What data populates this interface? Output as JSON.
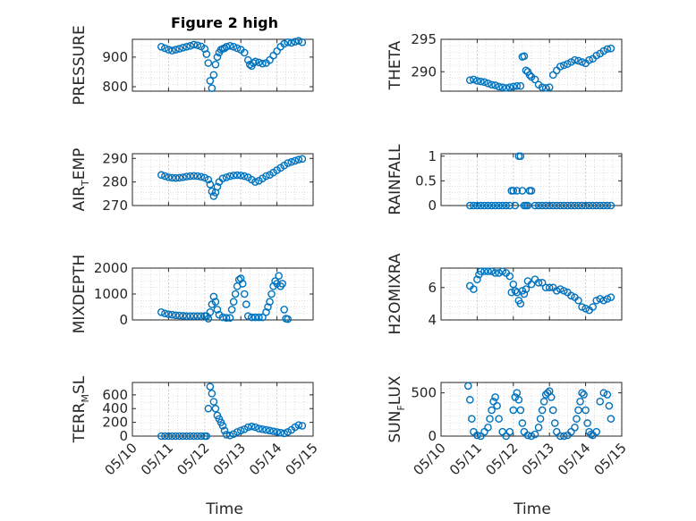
{
  "figure": {
    "title": "Figure 2 high",
    "xlabel": "Time"
  },
  "colors": {
    "marker": "#0072BD",
    "axis": "#262626",
    "grid": "#c8c8c8",
    "background": "#ffffff"
  },
  "chart_data": [
    {
      "type": "scatter",
      "name": "PRESSURE",
      "ylabel": {
        "main": "PRESSURE",
        "sub": "",
        "tail": ""
      },
      "title": "Figure 2 high",
      "xlim": [
        10,
        15
      ],
      "ylim": [
        785,
        960
      ],
      "yticks": [
        800,
        900
      ],
      "xticks": [
        "05/10",
        "05/11",
        "05/12",
        "05/13",
        "05/14",
        "05/15"
      ],
      "show_xticklabels": false,
      "grid": true,
      "series": [
        {
          "x": [
            10.8,
            10.9,
            11.0,
            11.1,
            11.2,
            11.3,
            11.4,
            11.5,
            11.6,
            11.7,
            11.8,
            11.9,
            12.0,
            12.05,
            12.1,
            12.15,
            12.2,
            12.25,
            12.3,
            12.35,
            12.4,
            12.45,
            12.5,
            12.55,
            12.6,
            12.7,
            12.8,
            12.9,
            13.0,
            13.1,
            13.2,
            13.25,
            13.3,
            13.35,
            13.4,
            13.5,
            13.6,
            13.7,
            13.8,
            13.9,
            14.0,
            14.1,
            14.2,
            14.3,
            14.4,
            14.5,
            14.6,
            14.7
          ],
          "y": [
            935,
            930,
            925,
            922,
            925,
            928,
            932,
            935,
            938,
            942,
            940,
            936,
            928,
            910,
            880,
            820,
            795,
            840,
            875,
            900,
            915,
            925,
            928,
            930,
            935,
            938,
            935,
            930,
            925,
            915,
            890,
            875,
            870,
            880,
            885,
            882,
            878,
            880,
            890,
            905,
            920,
            935,
            945,
            950,
            948,
            952,
            955,
            950
          ]
        }
      ]
    },
    {
      "type": "scatter",
      "name": "THETA",
      "ylabel": {
        "main": "THETA",
        "sub": "",
        "tail": ""
      },
      "xlim": [
        10,
        15
      ],
      "ylim": [
        287,
        295
      ],
      "yticks": [
        290,
        295
      ],
      "xticks": [
        "05/10",
        "05/11",
        "05/12",
        "05/13",
        "05/14",
        "05/15"
      ],
      "show_xticklabels": false,
      "grid": true,
      "series": [
        {
          "x": [
            10.8,
            10.9,
            11.0,
            11.1,
            11.2,
            11.3,
            11.4,
            11.5,
            11.6,
            11.7,
            11.8,
            11.9,
            12.0,
            12.1,
            12.2,
            12.25,
            12.3,
            12.35,
            12.4,
            12.45,
            12.5,
            12.6,
            12.7,
            12.8,
            12.9,
            13.0,
            13.1,
            13.2,
            13.3,
            13.4,
            13.5,
            13.6,
            13.7,
            13.8,
            13.9,
            14.0,
            14.1,
            14.2,
            14.3,
            14.4,
            14.5,
            14.6,
            14.7
          ],
          "y": [
            288.7,
            288.8,
            288.6,
            288.5,
            288.4,
            288.2,
            288.0,
            287.9,
            287.7,
            287.6,
            287.5,
            287.6,
            287.7,
            287.8,
            287.8,
            292.3,
            292.4,
            290.2,
            290.0,
            289.5,
            289.2,
            288.8,
            288.0,
            287.6,
            287.5,
            287.6,
            289.5,
            290.2,
            290.8,
            291.0,
            291.2,
            291.5,
            291.8,
            291.7,
            291.5,
            291.3,
            291.8,
            292.0,
            292.5,
            292.8,
            293.2,
            293.5,
            293.6
          ]
        }
      ]
    },
    {
      "type": "scatter",
      "name": "AIR_TEMP",
      "ylabel": {
        "main": "AIR",
        "sub": "T",
        "tail": "EMP"
      },
      "xlim": [
        10,
        15
      ],
      "ylim": [
        270,
        292
      ],
      "yticks": [
        270,
        280,
        290
      ],
      "xticks": [
        "05/10",
        "05/11",
        "05/12",
        "05/13",
        "05/14",
        "05/15"
      ],
      "show_xticklabels": false,
      "grid": true,
      "series": [
        {
          "x": [
            10.8,
            10.9,
            11.0,
            11.1,
            11.2,
            11.3,
            11.4,
            11.5,
            11.6,
            11.7,
            11.8,
            11.9,
            12.0,
            12.1,
            12.15,
            12.2,
            12.25,
            12.3,
            12.35,
            12.4,
            12.5,
            12.6,
            12.7,
            12.8,
            12.9,
            13.0,
            13.1,
            13.2,
            13.3,
            13.4,
            13.5,
            13.6,
            13.7,
            13.8,
            13.9,
            14.0,
            14.1,
            14.2,
            14.3,
            14.4,
            14.5,
            14.6,
            14.7
          ],
          "y": [
            283,
            282.5,
            282.0,
            281.8,
            281.7,
            281.8,
            282.0,
            282.3,
            282.5,
            282.6,
            282.5,
            282.2,
            281.8,
            281.0,
            279.0,
            276.0,
            274.0,
            275.5,
            278.0,
            280.0,
            281.5,
            282.0,
            282.5,
            282.8,
            282.9,
            282.8,
            282.5,
            282.0,
            281.0,
            280.0,
            280.5,
            281.5,
            282.5,
            283.0,
            284.0,
            285.0,
            286.0,
            287.0,
            288.0,
            288.5,
            289.0,
            289.5,
            289.8
          ]
        }
      ]
    },
    {
      "type": "scatter",
      "name": "RAINFALL",
      "ylabel": {
        "main": "RAINFALL",
        "sub": "",
        "tail": ""
      },
      "xlim": [
        10,
        15
      ],
      "ylim": [
        0,
        1.05
      ],
      "yticks": [
        0,
        0.5,
        1
      ],
      "xticks": [
        "05/10",
        "05/11",
        "05/12",
        "05/13",
        "05/14",
        "05/15"
      ],
      "show_xticklabels": false,
      "grid": true,
      "series": [
        {
          "x": [
            10.8,
            10.9,
            11.0,
            11.1,
            11.2,
            11.3,
            11.4,
            11.5,
            11.6,
            11.7,
            11.8,
            11.9,
            11.95,
            12.0,
            12.05,
            12.1,
            12.15,
            12.2,
            12.25,
            12.3,
            12.35,
            12.4,
            12.45,
            12.5,
            12.6,
            12.7,
            12.8,
            12.9,
            13.0,
            13.1,
            13.2,
            13.3,
            13.4,
            13.5,
            13.6,
            13.7,
            13.8,
            13.9,
            14.0,
            14.1,
            14.2,
            14.3,
            14.4,
            14.5,
            14.6,
            14.7
          ],
          "y": [
            0,
            0,
            0,
            0,
            0,
            0,
            0,
            0,
            0,
            0,
            0,
            0,
            0.3,
            0.3,
            0,
            0.3,
            1.0,
            1.0,
            0.3,
            0,
            0,
            0,
            0.3,
            0.3,
            0,
            0,
            0,
            0,
            0,
            0,
            0,
            0,
            0,
            0,
            0,
            0,
            0,
            0,
            0,
            0,
            0,
            0,
            0,
            0,
            0,
            0
          ]
        }
      ]
    },
    {
      "type": "scatter",
      "name": "MIXDEPTH",
      "ylabel": {
        "main": "MIXDEPTH",
        "sub": "",
        "tail": ""
      },
      "xlim": [
        10,
        15
      ],
      "ylim": [
        0,
        2000
      ],
      "yticks": [
        0,
        1000,
        2000
      ],
      "xticks": [
        "05/10",
        "05/11",
        "05/12",
        "05/13",
        "05/14",
        "05/15"
      ],
      "show_xticklabels": false,
      "grid": true,
      "series": [
        {
          "x": [
            10.8,
            10.9,
            11.0,
            11.1,
            11.2,
            11.3,
            11.4,
            11.5,
            11.6,
            11.7,
            11.8,
            11.9,
            12.0,
            12.05,
            12.1,
            12.15,
            12.2,
            12.25,
            12.3,
            12.35,
            12.4,
            12.5,
            12.6,
            12.7,
            12.75,
            12.8,
            12.85,
            12.9,
            12.95,
            13.0,
            13.05,
            13.1,
            13.15,
            13.2,
            13.3,
            13.4,
            13.5,
            13.6,
            13.7,
            13.75,
            13.8,
            13.85,
            13.9,
            13.95,
            14.0,
            14.05,
            14.1,
            14.15,
            14.2,
            14.25,
            14.3
          ],
          "y": [
            300,
            250,
            220,
            200,
            180,
            170,
            160,
            150,
            150,
            150,
            150,
            150,
            150,
            150,
            50,
            300,
            600,
            900,
            700,
            400,
            200,
            100,
            80,
            80,
            400,
            700,
            1000,
            1300,
            1550,
            1600,
            1400,
            1000,
            600,
            150,
            100,
            100,
            100,
            100,
            300,
            500,
            700,
            1000,
            1300,
            1500,
            1400,
            1700,
            1300,
            1400,
            400,
            50,
            30
          ]
        }
      ]
    },
    {
      "type": "scatter",
      "name": "H2OMIXRA",
      "ylabel": {
        "main": "H2OMIXRA",
        "sub": "",
        "tail": ""
      },
      "xlim": [
        10,
        15
      ],
      "ylim": [
        4,
        7.2
      ],
      "yticks": [
        4,
        6
      ],
      "xticks": [
        "05/10",
        "05/11",
        "05/12",
        "05/13",
        "05/14",
        "05/15"
      ],
      "show_xticklabels": false,
      "grid": true,
      "series": [
        {
          "x": [
            10.8,
            10.9,
            11.0,
            11.05,
            11.1,
            11.2,
            11.3,
            11.4,
            11.5,
            11.6,
            11.7,
            11.8,
            11.9,
            11.95,
            12.0,
            12.05,
            12.1,
            12.15,
            12.2,
            12.25,
            12.3,
            12.35,
            12.4,
            12.5,
            12.6,
            12.7,
            12.8,
            12.9,
            13.0,
            13.1,
            13.2,
            13.3,
            13.4,
            13.5,
            13.6,
            13.7,
            13.8,
            13.9,
            14.0,
            14.1,
            14.2,
            14.3,
            14.4,
            14.5,
            14.6,
            14.7
          ],
          "y": [
            6.1,
            5.9,
            6.5,
            6.8,
            7.0,
            7.0,
            7.0,
            7.0,
            6.9,
            6.9,
            7.0,
            6.9,
            6.7,
            5.7,
            6.2,
            5.8,
            5.7,
            5.2,
            5.0,
            5.8,
            5.6,
            5.9,
            6.4,
            6.2,
            6.5,
            6.3,
            6.3,
            6.0,
            6.0,
            6.0,
            5.8,
            5.9,
            5.8,
            5.7,
            5.5,
            5.4,
            5.2,
            4.8,
            4.7,
            4.6,
            4.8,
            5.2,
            5.3,
            5.2,
            5.3,
            5.4
          ]
        }
      ]
    },
    {
      "type": "scatter",
      "name": "TERR_MSL",
      "ylabel": {
        "main": "TERR",
        "sub": "M",
        "tail": "SL"
      },
      "xlim": [
        10,
        15
      ],
      "ylim": [
        0,
        780
      ],
      "yticks": [
        0,
        200,
        400,
        600
      ],
      "xticks": [
        "05/10",
        "05/11",
        "05/12",
        "05/13",
        "05/14",
        "05/15"
      ],
      "show_xticklabels": true,
      "xlabel": "Time",
      "grid": true,
      "series": [
        {
          "x": [
            10.8,
            10.9,
            11.0,
            11.1,
            11.2,
            11.3,
            11.4,
            11.5,
            11.6,
            11.7,
            11.8,
            11.9,
            12.0,
            12.05,
            12.1,
            12.15,
            12.2,
            12.25,
            12.3,
            12.35,
            12.4,
            12.45,
            12.5,
            12.55,
            12.6,
            12.7,
            12.8,
            12.9,
            13.0,
            13.1,
            13.2,
            13.3,
            13.4,
            13.5,
            13.6,
            13.7,
            13.8,
            13.9,
            14.0,
            14.1,
            14.2,
            14.3,
            14.4,
            14.5,
            14.6,
            14.7
          ],
          "y": [
            0,
            0,
            0,
            0,
            0,
            0,
            0,
            0,
            0,
            0,
            0,
            0,
            0,
            0,
            400,
            720,
            620,
            500,
            400,
            300,
            250,
            200,
            150,
            80,
            20,
            10,
            30,
            60,
            80,
            100,
            130,
            140,
            130,
            110,
            100,
            90,
            80,
            70,
            60,
            50,
            40,
            60,
            90,
            130,
            160,
            150
          ]
        }
      ]
    },
    {
      "type": "scatter",
      "name": "SUN_FLUX",
      "ylabel": {
        "main": "SUN",
        "sub": "F",
        "tail": "LUX"
      },
      "xlim": [
        10,
        15
      ],
      "ylim": [
        0,
        620
      ],
      "yticks": [
        0,
        500
      ],
      "xticks": [
        "05/10",
        "05/11",
        "05/12",
        "05/13",
        "05/14",
        "05/15"
      ],
      "show_xticklabels": true,
      "xlabel": "Time",
      "grid": true,
      "series": [
        {
          "x": [
            10.75,
            10.8,
            10.85,
            10.9,
            11.0,
            11.1,
            11.2,
            11.3,
            11.35,
            11.4,
            11.45,
            11.5,
            11.55,
            11.6,
            11.7,
            11.8,
            11.9,
            12.0,
            12.05,
            12.1,
            12.15,
            12.2,
            12.25,
            12.3,
            12.4,
            12.5,
            12.6,
            12.7,
            12.75,
            12.8,
            12.85,
            12.9,
            12.95,
            13.0,
            13.05,
            13.1,
            13.15,
            13.2,
            13.3,
            13.4,
            13.5,
            13.6,
            13.7,
            13.75,
            13.8,
            13.85,
            13.9,
            13.95,
            14.0,
            14.05,
            14.1,
            14.15,
            14.2,
            14.3,
            14.4,
            14.5,
            14.6,
            14.65,
            14.7
          ],
          "y": [
            580,
            420,
            200,
            50,
            10,
            0,
            50,
            100,
            200,
            300,
            400,
            450,
            350,
            200,
            50,
            0,
            50,
            300,
            450,
            500,
            420,
            300,
            150,
            50,
            10,
            0,
            20,
            100,
            200,
            300,
            400,
            480,
            500,
            520,
            450,
            300,
            150,
            50,
            0,
            0,
            10,
            50,
            100,
            200,
            300,
            400,
            500,
            480,
            300,
            150,
            50,
            20,
            10,
            50,
            400,
            500,
            480,
            350,
            200
          ]
        }
      ]
    }
  ]
}
